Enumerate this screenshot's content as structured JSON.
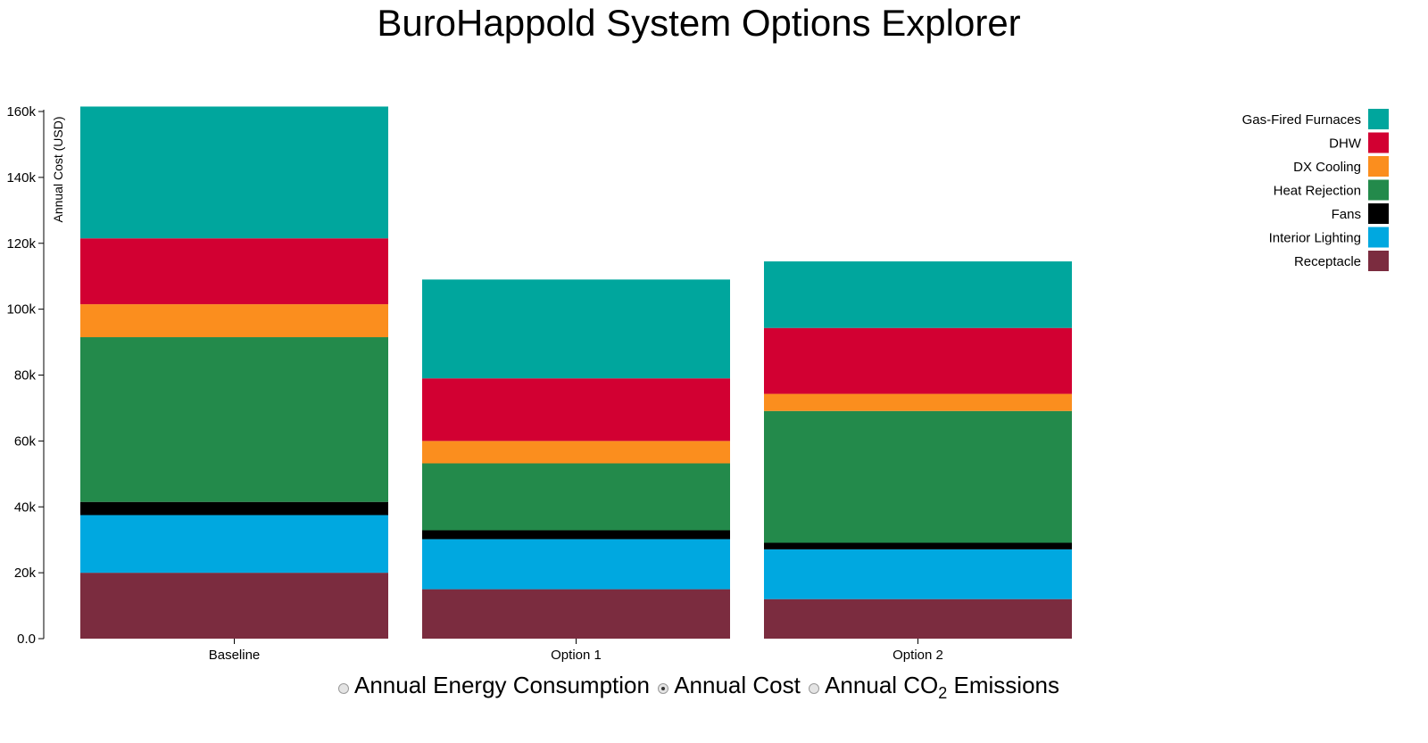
{
  "page": {
    "title": "BuroHappold System Options Explorer"
  },
  "chart_data": {
    "type": "bar",
    "stacked": true,
    "categories": [
      "Baseline",
      "Option 1",
      "Option 2"
    ],
    "ylabel": "Annual Cost (USD)",
    "ylim": [
      0,
      160000
    ],
    "yticks": [
      {
        "value": 0,
        "label": "0.0"
      },
      {
        "value": 20000,
        "label": "20k"
      },
      {
        "value": 40000,
        "label": "40k"
      },
      {
        "value": 60000,
        "label": "60k"
      },
      {
        "value": 80000,
        "label": "80k"
      },
      {
        "value": 100000,
        "label": "100k"
      },
      {
        "value": 120000,
        "label": "120k"
      },
      {
        "value": 140000,
        "label": "140k"
      },
      {
        "value": 160000,
        "label": "160k"
      }
    ],
    "legend_position": "top-right",
    "grid": false,
    "series": [
      {
        "name": "Receptacle",
        "color": "#7b2c3f",
        "values": [
          20000,
          15000,
          12000
        ]
      },
      {
        "name": "Interior Lighting",
        "color": "#00a8e0",
        "values": [
          17500,
          15200,
          15100
        ]
      },
      {
        "name": "Fans",
        "color": "#000000",
        "values": [
          4000,
          2700,
          2000
        ]
      },
      {
        "name": "Heat Rejection",
        "color": "#238a4b",
        "values": [
          50000,
          20300,
          40000
        ]
      },
      {
        "name": "DX Cooling",
        "color": "#fb8e1e",
        "values": [
          10000,
          6800,
          5200
        ]
      },
      {
        "name": "DHW",
        "color": "#d20032",
        "values": [
          20000,
          19000,
          20000
        ]
      },
      {
        "name": "Gas-Fired Furnaces",
        "color": "#00a69d",
        "values": [
          40000,
          30000,
          20200
        ]
      }
    ],
    "legend_order": [
      "Gas-Fired Furnaces",
      "DHW",
      "DX Cooling",
      "Heat Rejection",
      "Fans",
      "Interior Lighting",
      "Receptacle"
    ]
  },
  "metric_selector": {
    "options": [
      {
        "label": "Annual Energy Consumption",
        "checked": false
      },
      {
        "label": "Annual Cost",
        "checked": true
      },
      {
        "label_main": "Annual CO",
        "label_sub": "2",
        "label_end": " Emissions",
        "checked": false
      }
    ]
  }
}
